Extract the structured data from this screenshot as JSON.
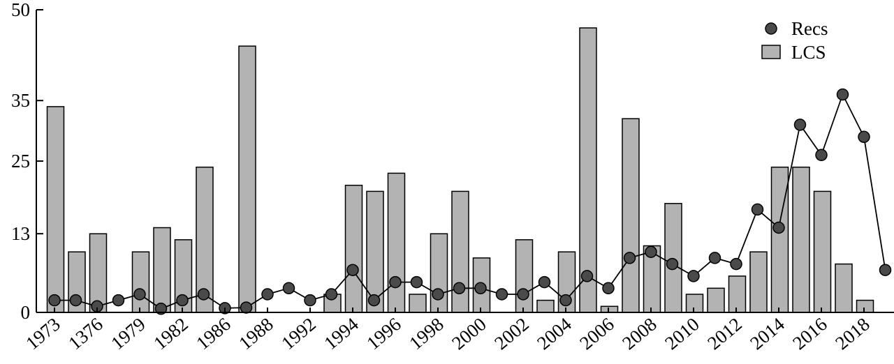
{
  "chart_data": {
    "type": "bar+line",
    "title": "",
    "xlabel": "",
    "ylabel": "",
    "ylim": [
      0,
      50
    ],
    "y_ticks": [
      0,
      13,
      25,
      35,
      50
    ],
    "x_tick_labels": [
      "1973",
      "1376",
      "1979",
      "1982",
      "1986",
      "1988",
      "1992",
      "1994",
      "1996",
      "1998",
      "2000",
      "2002",
      "2004",
      "2006",
      "2008",
      "2010",
      "2012",
      "2014",
      "2016",
      "2018"
    ],
    "num_slots": 40,
    "legend_position": "top-right",
    "series": [
      {
        "name": "LCS",
        "type": "bar",
        "color": "#b3b3b3",
        "values": [
          34,
          10,
          13,
          0,
          10,
          14,
          12,
          24,
          0,
          44,
          0,
          0,
          0,
          3,
          21,
          20,
          23,
          3,
          13,
          20,
          9,
          0,
          12,
          2,
          10,
          47,
          1,
          32,
          11,
          18,
          3,
          4,
          6,
          10,
          24,
          24,
          20,
          8,
          2,
          0
        ]
      },
      {
        "name": "Recs",
        "type": "line",
        "color": "#4a4a4a",
        "values": [
          2,
          2,
          1,
          2,
          3,
          0.6,
          2,
          3,
          0.7,
          0.8,
          3,
          4,
          2,
          3,
          7,
          2,
          5,
          5,
          3,
          4,
          4,
          3,
          3,
          5,
          2,
          6,
          4,
          9,
          10,
          8,
          6,
          9,
          8,
          17,
          14,
          31,
          26,
          36,
          29,
          7
        ]
      }
    ]
  }
}
